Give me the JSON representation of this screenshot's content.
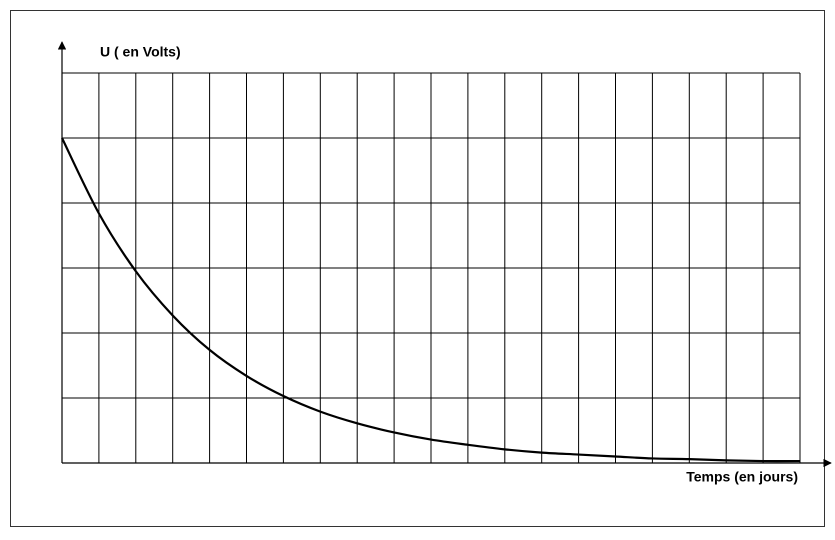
{
  "chart_data": {
    "type": "line",
    "y_label": "U ( en Volts)",
    "x_label": "Temps (en jours)",
    "x": [
      0,
      1,
      2,
      3,
      4,
      5,
      6,
      7,
      8,
      9,
      10,
      11,
      12,
      13,
      14,
      15,
      16,
      17,
      18,
      19,
      20
    ],
    "series": [
      {
        "color": "#000000",
        "values": [
          5,
          3.84,
          2.95,
          2.27,
          1.74,
          1.34,
          1.03,
          0.79,
          0.61,
          0.47,
          0.36,
          0.28,
          0.21,
          0.16,
          0.13,
          0.1,
          0.07,
          0.06,
          0.04,
          0.03,
          0.03
        ]
      }
    ],
    "xlim": [
      0,
      20
    ],
    "ylim": [
      0,
      6
    ],
    "xticks": [
      0,
      1,
      2,
      3,
      4,
      5,
      6,
      7,
      8,
      9,
      10,
      11,
      12,
      13,
      14,
      15,
      16,
      17,
      18,
      19,
      20
    ],
    "yticks": [
      0,
      1,
      2,
      3,
      4,
      5,
      6
    ],
    "grid": true
  }
}
